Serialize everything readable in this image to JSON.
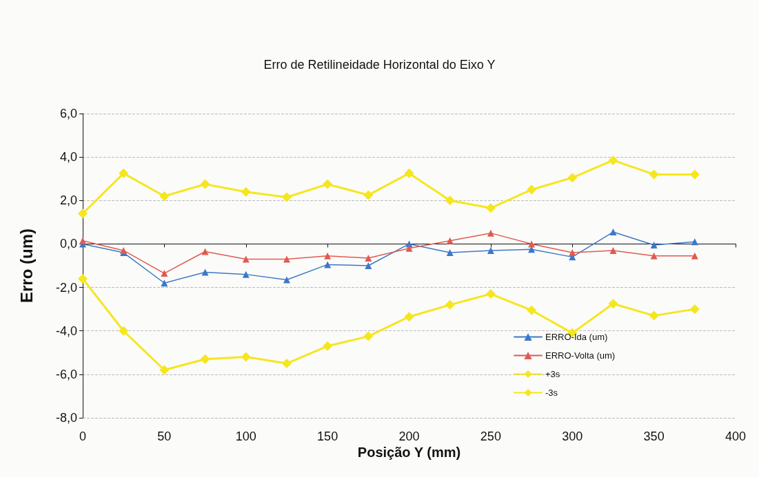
{
  "chart_data": {
    "type": "line",
    "title": "Erro de Retilineidade Horizontal do Eixo Y",
    "xlabel": "Posição Y (mm)",
    "ylabel": "Erro (um)",
    "x": [
      0,
      25,
      50,
      75,
      100,
      125,
      150,
      175,
      200,
      225,
      250,
      275,
      300,
      325,
      350,
      375
    ],
    "series": [
      {
        "name": "ERRO-Ida (um)",
        "color": "#3c78c8",
        "marker": "triangle",
        "values": [
          0.0,
          -0.4,
          -1.8,
          -1.3,
          -1.4,
          -1.65,
          -0.95,
          -1.0,
          0.0,
          -0.4,
          -0.3,
          -0.25,
          -0.6,
          0.55,
          -0.05,
          0.1
        ]
      },
      {
        "name": "ERRO-Volta (um)",
        "color": "#e05a50",
        "marker": "triangle",
        "values": [
          0.15,
          -0.3,
          -1.35,
          -0.35,
          -0.7,
          -0.7,
          -0.55,
          -0.65,
          -0.2,
          0.15,
          0.5,
          0.0,
          -0.4,
          -0.3,
          -0.55,
          -0.55
        ]
      },
      {
        "name": "+3s",
        "color": "#f5e61e",
        "marker": "diamond",
        "values": [
          1.4,
          3.25,
          2.2,
          2.75,
          2.4,
          2.15,
          2.75,
          2.25,
          3.25,
          2.0,
          1.65,
          2.5,
          3.05,
          3.85,
          3.2,
          3.2
        ]
      },
      {
        "name": "-3s",
        "color": "#f5e61e",
        "marker": "diamond",
        "values": [
          -1.6,
          -4.0,
          -5.8,
          -5.3,
          -5.2,
          -5.5,
          -4.7,
          -4.25,
          -3.35,
          -2.8,
          -2.3,
          -3.05,
          -4.1,
          -2.75,
          -3.3,
          -3.0
        ]
      }
    ],
    "xlim": [
      0,
      400
    ],
    "xticks": [
      0,
      50,
      100,
      150,
      200,
      250,
      300,
      350,
      400
    ],
    "ylim": [
      -8,
      6
    ],
    "yticks": [
      {
        "value": -8,
        "label": "-8,0"
      },
      {
        "value": -6,
        "label": "-6,0"
      },
      {
        "value": -4,
        "label": "-4,0"
      },
      {
        "value": -2,
        "label": "-2,0"
      },
      {
        "value": 0,
        "label": "0,0"
      },
      {
        "value": 2,
        "label": "2,0"
      },
      {
        "value": 4,
        "label": "4,0"
      },
      {
        "value": 6,
        "label": "6,0"
      }
    ],
    "grid": "y",
    "legend": "right",
    "line_style": "solid"
  }
}
